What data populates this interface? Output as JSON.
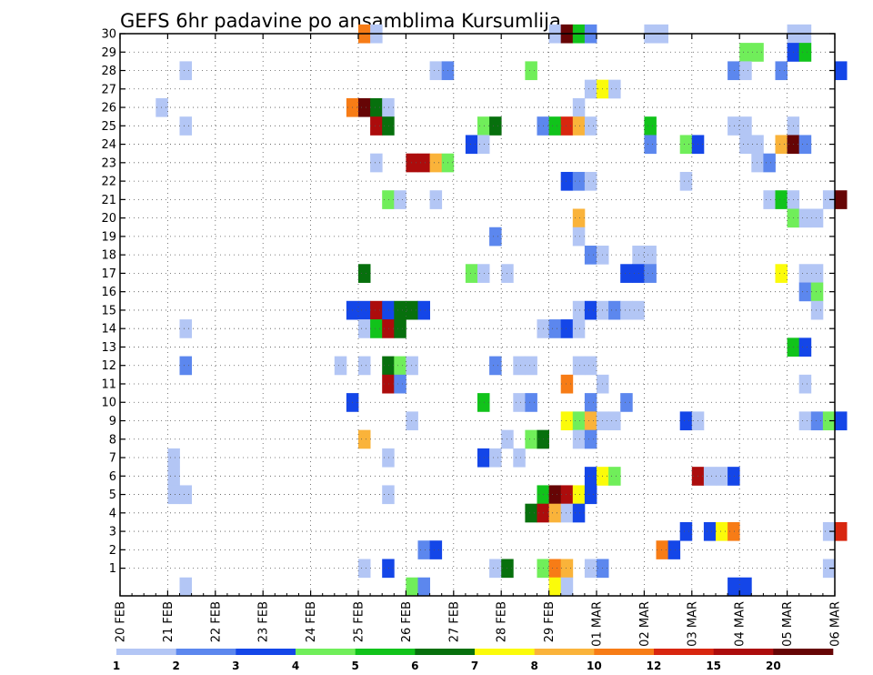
{
  "chart_data": {
    "type": "heatmap",
    "title": "GEFS 6hr padavine po ansamblima Kursumlija",
    "x_tick_labels": [
      "20 FEB",
      "21 FEB",
      "22 FEB",
      "23 FEB",
      "24 FEB",
      "25 FEB",
      "26 FEB",
      "27 FEB",
      "28 FEB",
      "29 FEB",
      "01 MAR",
      "02 MAR",
      "03 MAR",
      "04 MAR",
      "05 MAR",
      "06 MAR"
    ],
    "y_tick_labels": [
      "1",
      "2",
      "3",
      "4",
      "5",
      "6",
      "7",
      "8",
      "9",
      "10",
      "11",
      "12",
      "13",
      "14",
      "15",
      "16",
      "17",
      "18",
      "19",
      "20",
      "21",
      "22",
      "23",
      "24",
      "25",
      "26",
      "27",
      "28",
      "29",
      "30"
    ],
    "ensemble_range": [
      0,
      30
    ],
    "x_range_days": [
      0,
      15
    ],
    "grid": true,
    "colorbar": {
      "position": "bottom",
      "labels": [
        "1",
        "2",
        "3",
        "4",
        "5",
        "6",
        "7",
        "8",
        "10",
        "12",
        "15",
        "20"
      ],
      "bounds": [
        1,
        2,
        3,
        4,
        5,
        6,
        7,
        8,
        10,
        12,
        15,
        20
      ],
      "colors": [
        "#b3c6f5",
        "#5c87ee",
        "#1446e8",
        "#70ee5a",
        "#11c31b",
        "#07700d",
        "#fbfb0a",
        "#fab33a",
        "#f77c16",
        "#d8260f",
        "#ac0c0c",
        "#660505"
      ]
    },
    "cells": [
      [
        5.0,
        30,
        9
      ],
      [
        5.25,
        30,
        1
      ],
      [
        9.0,
        30,
        1
      ],
      [
        9.25,
        30,
        12
      ],
      [
        9.5,
        30,
        5
      ],
      [
        9.75,
        30,
        2
      ],
      [
        11.0,
        30,
        1
      ],
      [
        11.25,
        30,
        1
      ],
      [
        14.0,
        30,
        1
      ],
      [
        14.25,
        30,
        1
      ],
      [
        13.0,
        29,
        4
      ],
      [
        13.25,
        29,
        4
      ],
      [
        14.0,
        29,
        3
      ],
      [
        14.25,
        29,
        5
      ],
      [
        1.25,
        28,
        1
      ],
      [
        6.5,
        28,
        1
      ],
      [
        6.75,
        28,
        2
      ],
      [
        8.5,
        28,
        4
      ],
      [
        12.75,
        28,
        2
      ],
      [
        13.0,
        28,
        1
      ],
      [
        13.75,
        28,
        2
      ],
      [
        15.0,
        28,
        3
      ],
      [
        9.75,
        27,
        1
      ],
      [
        10.0,
        27,
        7
      ],
      [
        10.25,
        27,
        1
      ],
      [
        0.75,
        26,
        1
      ],
      [
        4.75,
        26,
        9
      ],
      [
        5.0,
        26,
        12
      ],
      [
        5.25,
        26,
        6
      ],
      [
        5.5,
        26,
        1
      ],
      [
        9.5,
        26,
        1
      ],
      [
        1.25,
        25,
        1
      ],
      [
        5.25,
        25,
        11
      ],
      [
        5.5,
        25,
        6
      ],
      [
        7.5,
        25,
        4
      ],
      [
        7.75,
        25,
        6
      ],
      [
        8.75,
        25,
        2
      ],
      [
        9.0,
        25,
        5
      ],
      [
        9.25,
        25,
        10
      ],
      [
        9.5,
        25,
        8
      ],
      [
        9.75,
        25,
        1
      ],
      [
        11.0,
        25,
        5
      ],
      [
        12.75,
        25,
        1
      ],
      [
        13.0,
        25,
        1
      ],
      [
        14.0,
        25,
        1
      ],
      [
        7.25,
        24,
        3
      ],
      [
        7.5,
        24,
        1
      ],
      [
        11.0,
        24,
        2
      ],
      [
        11.75,
        24,
        4
      ],
      [
        12.0,
        24,
        3
      ],
      [
        13.0,
        24,
        1
      ],
      [
        13.25,
        24,
        1
      ],
      [
        13.75,
        24,
        8
      ],
      [
        14.0,
        24,
        12
      ],
      [
        14.25,
        24,
        2
      ],
      [
        5.25,
        23,
        1
      ],
      [
        6.0,
        23,
        11
      ],
      [
        6.25,
        23,
        11
      ],
      [
        6.5,
        23,
        8
      ],
      [
        6.75,
        23,
        4
      ],
      [
        13.25,
        23,
        1
      ],
      [
        13.5,
        23,
        2
      ],
      [
        9.25,
        22,
        3
      ],
      [
        9.5,
        22,
        2
      ],
      [
        9.75,
        22,
        1
      ],
      [
        11.75,
        22,
        1
      ],
      [
        5.5,
        21,
        4
      ],
      [
        5.75,
        21,
        1
      ],
      [
        6.5,
        21,
        1
      ],
      [
        13.5,
        21,
        1
      ],
      [
        13.75,
        21,
        5
      ],
      [
        14.0,
        21,
        1
      ],
      [
        14.75,
        21,
        1
      ],
      [
        15.0,
        21,
        12
      ],
      [
        9.5,
        20,
        8
      ],
      [
        14.0,
        20,
        4
      ],
      [
        14.25,
        20,
        1
      ],
      [
        14.5,
        20,
        1
      ],
      [
        7.75,
        19,
        2
      ],
      [
        9.5,
        19,
        1
      ],
      [
        9.75,
        18,
        2
      ],
      [
        10.0,
        18,
        1
      ],
      [
        10.75,
        18,
        1
      ],
      [
        11.0,
        18,
        1
      ],
      [
        5.0,
        17,
        6
      ],
      [
        7.25,
        17,
        4
      ],
      [
        7.5,
        17,
        1
      ],
      [
        8.0,
        17,
        1
      ],
      [
        10.5,
        17,
        3
      ],
      [
        10.75,
        17,
        3
      ],
      [
        11.0,
        17,
        2
      ],
      [
        13.75,
        17,
        7
      ],
      [
        14.25,
        17,
        1
      ],
      [
        14.5,
        17,
        1
      ],
      [
        14.25,
        16,
        2
      ],
      [
        14.5,
        16,
        4
      ],
      [
        4.75,
        15,
        3
      ],
      [
        5.0,
        15,
        3
      ],
      [
        5.25,
        15,
        11
      ],
      [
        5.5,
        15,
        3
      ],
      [
        5.75,
        15,
        6
      ],
      [
        6.0,
        15,
        6
      ],
      [
        6.25,
        15,
        3
      ],
      [
        9.5,
        15,
        1
      ],
      [
        9.75,
        15,
        3
      ],
      [
        10.0,
        15,
        1
      ],
      [
        10.25,
        15,
        2
      ],
      [
        10.5,
        15,
        1
      ],
      [
        10.75,
        15,
        1
      ],
      [
        14.5,
        15,
        1
      ],
      [
        1.25,
        14,
        1
      ],
      [
        5.0,
        14,
        1
      ],
      [
        5.25,
        14,
        5
      ],
      [
        5.5,
        14,
        11
      ],
      [
        5.75,
        14,
        6
      ],
      [
        8.75,
        14,
        1
      ],
      [
        9.0,
        14,
        2
      ],
      [
        9.25,
        14,
        3
      ],
      [
        9.5,
        14,
        1
      ],
      [
        14.0,
        13,
        5
      ],
      [
        14.25,
        13,
        3
      ],
      [
        1.25,
        12,
        2
      ],
      [
        4.5,
        12,
        1
      ],
      [
        5.0,
        12,
        1
      ],
      [
        5.5,
        12,
        6
      ],
      [
        5.75,
        12,
        4
      ],
      [
        6.0,
        12,
        1
      ],
      [
        7.75,
        12,
        2
      ],
      [
        8.25,
        12,
        1
      ],
      [
        8.5,
        12,
        1
      ],
      [
        9.5,
        12,
        1
      ],
      [
        9.75,
        12,
        1
      ],
      [
        5.5,
        11,
        11
      ],
      [
        5.75,
        11,
        2
      ],
      [
        9.25,
        11,
        9
      ],
      [
        10.0,
        11,
        1
      ],
      [
        14.25,
        11,
        1
      ],
      [
        4.75,
        10,
        3
      ],
      [
        7.5,
        10,
        5
      ],
      [
        8.25,
        10,
        1
      ],
      [
        8.5,
        10,
        2
      ],
      [
        9.75,
        10,
        2
      ],
      [
        10.5,
        10,
        2
      ],
      [
        6.0,
        9,
        1
      ],
      [
        9.25,
        9,
        7
      ],
      [
        9.5,
        9,
        4
      ],
      [
        9.75,
        9,
        8
      ],
      [
        10.0,
        9,
        1
      ],
      [
        10.25,
        9,
        1
      ],
      [
        11.75,
        9,
        3
      ],
      [
        12.0,
        9,
        1
      ],
      [
        14.25,
        9,
        1
      ],
      [
        14.5,
        9,
        2
      ],
      [
        14.75,
        9,
        4
      ],
      [
        15.0,
        9,
        3
      ],
      [
        5.0,
        8,
        8
      ],
      [
        8.0,
        8,
        1
      ],
      [
        8.5,
        8,
        4
      ],
      [
        8.75,
        8,
        6
      ],
      [
        9.5,
        8,
        1
      ],
      [
        9.75,
        8,
        2
      ],
      [
        1.0,
        7,
        1
      ],
      [
        5.5,
        7,
        1
      ],
      [
        7.5,
        7,
        3
      ],
      [
        7.75,
        7,
        1
      ],
      [
        8.25,
        7,
        1
      ],
      [
        1.0,
        6,
        1
      ],
      [
        9.75,
        6,
        3
      ],
      [
        10.0,
        6,
        7
      ],
      [
        10.25,
        6,
        4
      ],
      [
        12.0,
        6,
        11
      ],
      [
        12.25,
        6,
        1
      ],
      [
        12.5,
        6,
        1
      ],
      [
        12.75,
        6,
        3
      ],
      [
        1.0,
        5,
        1
      ],
      [
        1.25,
        5,
        1
      ],
      [
        5.5,
        5,
        1
      ],
      [
        8.75,
        5,
        5
      ],
      [
        9.0,
        5,
        12
      ],
      [
        9.25,
        5,
        11
      ],
      [
        9.5,
        5,
        7
      ],
      [
        9.75,
        5,
        3
      ],
      [
        8.5,
        4,
        6
      ],
      [
        8.75,
        4,
        11
      ],
      [
        9.0,
        4,
        8
      ],
      [
        9.25,
        4,
        1
      ],
      [
        9.5,
        4,
        3
      ],
      [
        11.75,
        3,
        3
      ],
      [
        12.25,
        3,
        3
      ],
      [
        12.5,
        3,
        7
      ],
      [
        12.75,
        3,
        9
      ],
      [
        14.75,
        3,
        1
      ],
      [
        15.0,
        3,
        10
      ],
      [
        6.25,
        2,
        2
      ],
      [
        6.5,
        2,
        3
      ],
      [
        11.25,
        2,
        9
      ],
      [
        11.5,
        2,
        3
      ],
      [
        5.0,
        1,
        1
      ],
      [
        5.5,
        1,
        3
      ],
      [
        7.75,
        1,
        1
      ],
      [
        8.0,
        1,
        6
      ],
      [
        8.75,
        1,
        4
      ],
      [
        9.0,
        1,
        9
      ],
      [
        9.25,
        1,
        8
      ],
      [
        9.75,
        1,
        1
      ],
      [
        10.0,
        1,
        2
      ],
      [
        14.75,
        1,
        1
      ],
      [
        1.25,
        0,
        1
      ],
      [
        6.0,
        0,
        4
      ],
      [
        6.25,
        0,
        2
      ],
      [
        9.0,
        0,
        7
      ],
      [
        9.25,
        0,
        1
      ],
      [
        12.75,
        0,
        3
      ],
      [
        13.0,
        0,
        3
      ]
    ]
  }
}
